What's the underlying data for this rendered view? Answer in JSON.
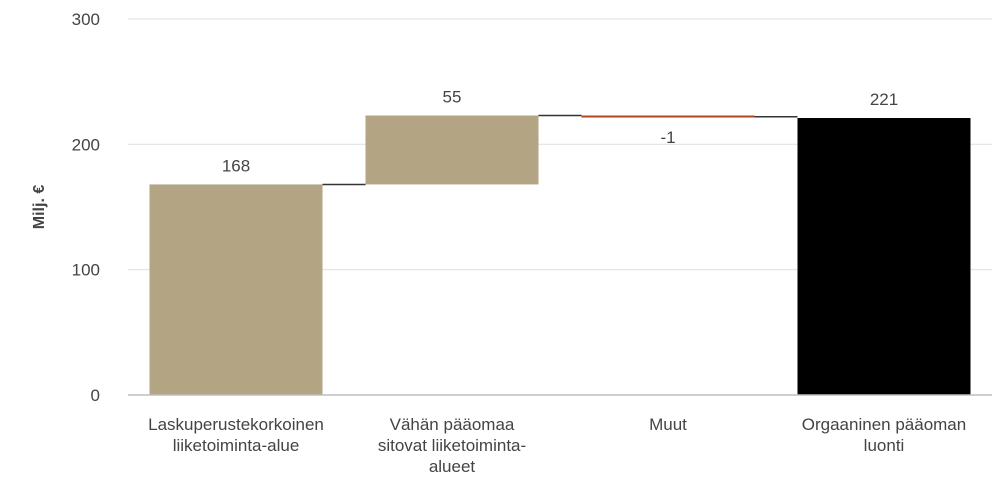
{
  "chart_data": {
    "type": "bar",
    "subtype": "waterfall",
    "ylabel": "Milj. €",
    "ylim": [
      0,
      300
    ],
    "yticks": [
      "0",
      "100",
      "200",
      "300"
    ],
    "grid": true,
    "categories": [
      [
        "Laskuperustekorkoinen",
        "liiketoiminta-alue"
      ],
      [
        "Vähän pääomaa",
        "sitovat liiketoiminta-",
        "alueet"
      ],
      [
        "Muut"
      ],
      [
        "Orgaaninen pääoman",
        "luonti"
      ]
    ],
    "values": [
      168,
      55,
      -1,
      221
    ],
    "value_labels": [
      "168",
      "55",
      "-1",
      "221"
    ],
    "bar_kinds": [
      "increase",
      "increase",
      "decrease",
      "total"
    ],
    "colors": {
      "increase": "#b3a484",
      "decrease": "#b0471c",
      "total": "#000000",
      "connector": "#333333",
      "grid": "#e3e3e3",
      "axis": "#bfbfbf"
    }
  }
}
